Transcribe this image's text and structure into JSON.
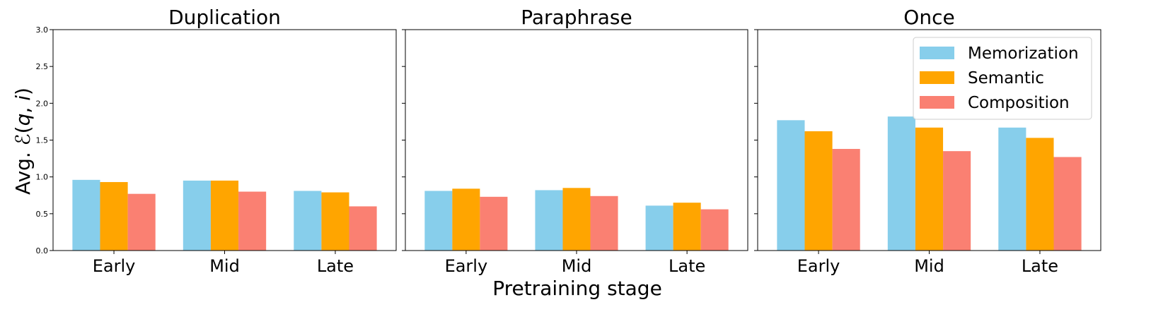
{
  "chart_data": [
    {
      "type": "bar",
      "title": "Duplication",
      "categories": [
        "Early",
        "Mid",
        "Late"
      ],
      "series": [
        {
          "name": "Memorization",
          "values": [
            0.96,
            0.95,
            0.81
          ]
        },
        {
          "name": "Semantic",
          "values": [
            0.93,
            0.95,
            0.79
          ]
        },
        {
          "name": "Composition",
          "values": [
            0.77,
            0.8,
            0.6
          ]
        }
      ],
      "ylim": [
        0,
        3.0
      ],
      "yticks": [
        "0.0",
        "0.5",
        "1.0",
        "1.5",
        "2.0",
        "2.5",
        "3.0"
      ]
    },
    {
      "type": "bar",
      "title": "Paraphrase",
      "categories": [
        "Early",
        "Mid",
        "Late"
      ],
      "series": [
        {
          "name": "Memorization",
          "values": [
            0.81,
            0.82,
            0.61
          ]
        },
        {
          "name": "Semantic",
          "values": [
            0.84,
            0.85,
            0.65
          ]
        },
        {
          "name": "Composition",
          "values": [
            0.73,
            0.74,
            0.56
          ]
        }
      ],
      "ylim": [
        0,
        3.0
      ]
    },
    {
      "type": "bar",
      "title": "Once",
      "categories": [
        "Early",
        "Mid",
        "Late"
      ],
      "series": [
        {
          "name": "Memorization",
          "values": [
            1.77,
            1.82,
            1.67
          ]
        },
        {
          "name": "Semantic",
          "values": [
            1.62,
            1.67,
            1.53
          ]
        },
        {
          "name": "Composition",
          "values": [
            1.38,
            1.35,
            1.27
          ]
        }
      ],
      "ylim": [
        0,
        3.0
      ]
    }
  ],
  "ylabel": "Avg. ℰ(q, i)",
  "xlabel": "Pretraining stage",
  "legend": {
    "placement": "top-right",
    "items": [
      "Memorization",
      "Semantic",
      "Composition"
    ]
  },
  "colors": {
    "Memorization": "#87ceeb",
    "Semantic": "#ffa500",
    "Composition": "#fa8072"
  }
}
